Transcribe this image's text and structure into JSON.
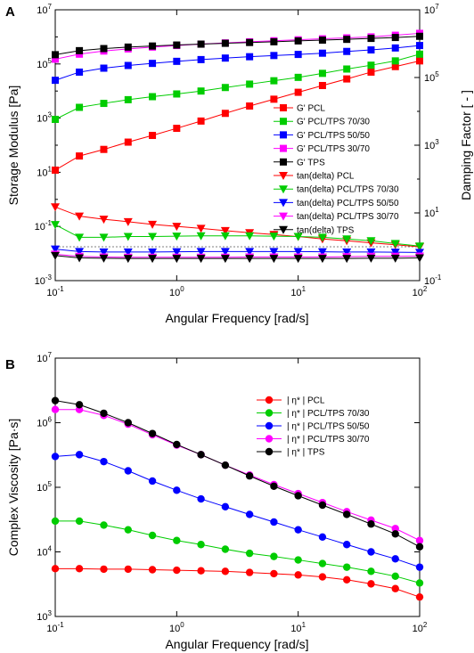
{
  "chart_data": [
    {
      "panel_label": "A",
      "type": "line",
      "xlabel": "Angular Frequency [rad/s]",
      "ylabel": "Storage Modulus [Pa]",
      "y2label": "Damping Factor [ - ]",
      "x_scale": "log",
      "y_scale": "log",
      "y2_scale": "log",
      "xlim": [
        0.1,
        100
      ],
      "ylim": [
        0.001,
        10000000
      ],
      "y2lim": [
        0.1,
        10000000
      ],
      "x_ticks": [
        {
          "base": "10",
          "exp": "-1"
        },
        {
          "base": "10",
          "exp": "0"
        },
        {
          "base": "10",
          "exp": "1"
        },
        {
          "base": "10",
          "exp": "2"
        }
      ],
      "y_ticks": [
        {
          "base": "10",
          "exp": "-3"
        },
        {
          "base": "10",
          "exp": "-1"
        },
        {
          "base": "10",
          "exp": "1"
        },
        {
          "base": "10",
          "exp": "3"
        },
        {
          "base": "10",
          "exp": "5"
        },
        {
          "base": "10",
          "exp": "7"
        }
      ],
      "y2_ticks": [
        {
          "base": "10",
          "exp": "-1"
        },
        {
          "base": "10",
          "exp": "1"
        },
        {
          "base": "10",
          "exp": "3"
        },
        {
          "base": "10",
          "exp": "5"
        },
        {
          "base": "10",
          "exp": "7"
        }
      ],
      "grid": false,
      "legend_position": "center-right",
      "reference_line": {
        "axis": "y2",
        "value": 1,
        "style": "dotted"
      },
      "x": [
        0.1,
        0.158,
        0.251,
        0.398,
        0.631,
        1.0,
        1.585,
        2.512,
        3.981,
        6.31,
        10.0,
        15.85,
        25.12,
        39.81,
        63.1,
        100.0
      ],
      "series": [
        {
          "name": "G' PCL",
          "color": "#ff0000",
          "marker": "square",
          "axis": "y",
          "values": [
            12,
            40,
            70,
            130,
            230,
            420,
            780,
            1500,
            2800,
            5000,
            9000,
            16000,
            28000,
            50000,
            80000,
            130000
          ]
        },
        {
          "name": "G' PCL/TPS 70/30",
          "color": "#00cc00",
          "marker": "square",
          "axis": "y",
          "values": [
            900,
            2500,
            3500,
            4800,
            6200,
            7800,
            10000,
            13500,
            18000,
            24000,
            32000,
            45000,
            65000,
            90000,
            130000,
            230000
          ]
        },
        {
          "name": "G' PCL/TPS 50/50",
          "color": "#0000ff",
          "marker": "square",
          "axis": "y",
          "values": [
            25000,
            50000,
            70000,
            88000,
            105000,
            125000,
            145000,
            165000,
            185000,
            205000,
            225000,
            250000,
            290000,
            330000,
            390000,
            480000
          ]
        },
        {
          "name": "G' PCL/TPS 30/70",
          "color": "#ff00ff",
          "marker": "square",
          "axis": "y",
          "values": [
            150000,
            230000,
            300000,
            360000,
            420000,
            480000,
            540000,
            600000,
            660000,
            720000,
            780000,
            850000,
            920000,
            1000000,
            1150000,
            1350000
          ]
        },
        {
          "name": "G' TPS",
          "color": "#000000",
          "marker": "square",
          "axis": "y",
          "values": [
            220000,
            310000,
            370000,
            420000,
            460000,
            500000,
            540000,
            580000,
            620000,
            660000,
            710000,
            760000,
            810000,
            880000,
            950000,
            1050000
          ]
        },
        {
          "name": "tan(delta) PCL",
          "color": "#ff0000",
          "marker": "triangle-down",
          "axis": "y2",
          "values": [
            15,
            8,
            6.5,
            5.5,
            4.6,
            4.0,
            3.5,
            3.0,
            2.6,
            2.3,
            2.0,
            1.7,
            1.5,
            1.3,
            1.15,
            1.0
          ]
        },
        {
          "name": "tan(delta) PCL/TPS 70/30",
          "color": "#00cc00",
          "marker": "triangle-down",
          "axis": "y2",
          "values": [
            4.5,
            1.9,
            1.9,
            2.0,
            2.0,
            2.05,
            2.1,
            2.1,
            2.1,
            2.05,
            2.0,
            1.9,
            1.7,
            1.5,
            1.25,
            1.05
          ]
        },
        {
          "name": "tan(delta) PCL/TPS 50/50",
          "color": "#0000ff",
          "marker": "triangle-down",
          "axis": "y2",
          "values": [
            0.85,
            0.72,
            0.7,
            0.7,
            0.7,
            0.71,
            0.72,
            0.72,
            0.72,
            0.72,
            0.72,
            0.71,
            0.7,
            0.7,
            0.69,
            0.68
          ]
        },
        {
          "name": "tan(delta) PCL/TPS 30/70",
          "color": "#ff00ff",
          "marker": "triangle-down",
          "axis": "y2",
          "values": [
            0.6,
            0.52,
            0.5,
            0.49,
            0.49,
            0.49,
            0.49,
            0.49,
            0.5,
            0.5,
            0.5,
            0.5,
            0.51,
            0.52,
            0.52,
            0.53
          ]
        },
        {
          "name": "tan(delta) TPS",
          "color": "#000000",
          "marker": "triangle-down",
          "axis": "y2",
          "values": [
            0.55,
            0.47,
            0.46,
            0.45,
            0.45,
            0.45,
            0.45,
            0.45,
            0.45,
            0.45,
            0.45,
            0.45,
            0.45,
            0.46,
            0.46,
            0.47
          ]
        }
      ]
    },
    {
      "panel_label": "B",
      "type": "line",
      "xlabel": "Angular Frequency [rad/s]",
      "ylabel": "Complex Viscosity [Pa·s]",
      "x_scale": "log",
      "y_scale": "log",
      "xlim": [
        0.1,
        100
      ],
      "ylim": [
        1000,
        10000000
      ],
      "x_ticks": [
        {
          "base": "10",
          "exp": "-1"
        },
        {
          "base": "10",
          "exp": "0"
        },
        {
          "base": "10",
          "exp": "1"
        },
        {
          "base": "10",
          "exp": "2"
        }
      ],
      "y_ticks": [
        {
          "base": "10",
          "exp": "3"
        },
        {
          "base": "10",
          "exp": "4"
        },
        {
          "base": "10",
          "exp": "5"
        },
        {
          "base": "10",
          "exp": "6"
        },
        {
          "base": "10",
          "exp": "7"
        }
      ],
      "grid": false,
      "legend_position": "top-right",
      "x": [
        0.1,
        0.158,
        0.251,
        0.398,
        0.631,
        1.0,
        1.585,
        2.512,
        3.981,
        6.31,
        10.0,
        15.85,
        25.12,
        39.81,
        63.1,
        100.0
      ],
      "series": [
        {
          "name": "| η* | PCL",
          "color": "#ff0000",
          "marker": "circle",
          "values": [
            5500,
            5500,
            5400,
            5400,
            5300,
            5200,
            5100,
            5000,
            4800,
            4600,
            4400,
            4100,
            3700,
            3200,
            2700,
            2000
          ]
        },
        {
          "name": "| η* | PCL/TPS 70/30",
          "color": "#00cc00",
          "marker": "circle",
          "values": [
            30000,
            30000,
            26000,
            22000,
            18000,
            15000,
            13000,
            11000,
            9500,
            8500,
            7500,
            6600,
            5800,
            5000,
            4200,
            3300
          ]
        },
        {
          "name": "| η* | PCL/TPS 50/50",
          "color": "#0000ff",
          "marker": "circle",
          "values": [
            300000,
            320000,
            250000,
            180000,
            125000,
            90000,
            66000,
            50000,
            38000,
            29000,
            22000,
            17000,
            13000,
            10000,
            7800,
            5800
          ]
        },
        {
          "name": "| η* | PCL/TPS 30/70",
          "color": "#ff00ff",
          "marker": "circle",
          "values": [
            1600000,
            1600000,
            1300000,
            950000,
            650000,
            450000,
            320000,
            220000,
            155000,
            110000,
            80000,
            58000,
            42000,
            31000,
            23000,
            15000
          ]
        },
        {
          "name": "| η* | TPS",
          "color": "#000000",
          "marker": "circle",
          "values": [
            2200000,
            1900000,
            1400000,
            1000000,
            680000,
            460000,
            320000,
            220000,
            150000,
            104000,
            74000,
            53000,
            38000,
            27000,
            19000,
            12000
          ]
        }
      ]
    }
  ]
}
